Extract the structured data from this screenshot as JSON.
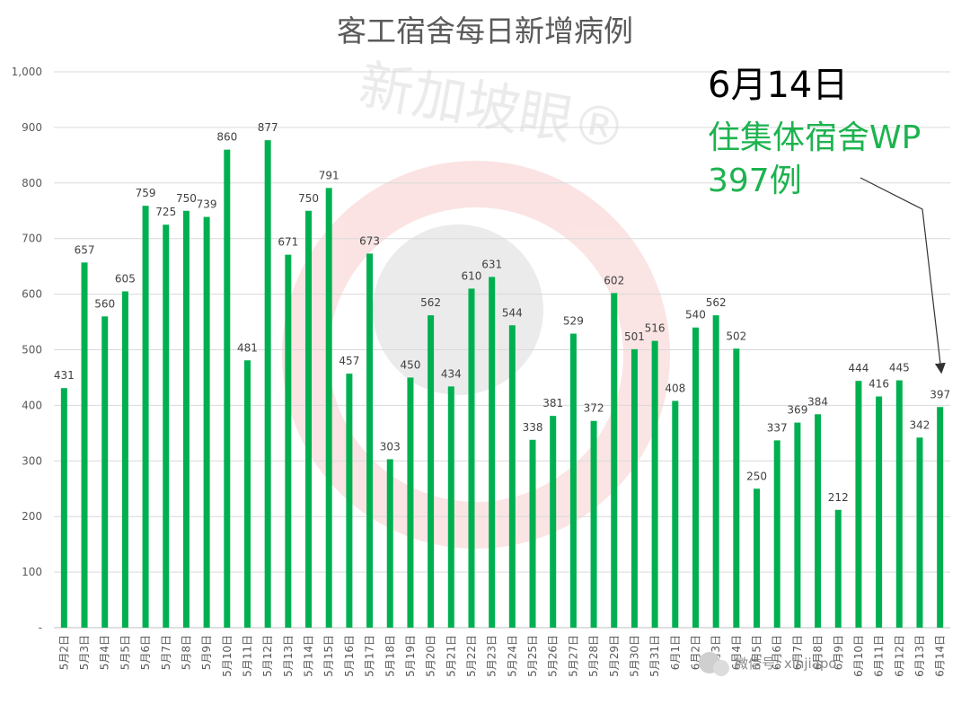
{
  "colors": {
    "bar": "#00b050",
    "annotation_green": "#1db34f",
    "grid": "#d9d9d9"
  },
  "watermark": {
    "brand": "新加坡眼®",
    "wechat": "微信号: xinjiapo"
  },
  "annotation": {
    "date": "6月14日",
    "line1": "住集体宿舍WP",
    "line2": "397例"
  },
  "chart_data": {
    "type": "bar",
    "title": "客工宿舍每日新增病例",
    "xlabel": "",
    "ylabel": "",
    "ylim": [
      0,
      1000
    ],
    "yticks": [
      {
        "value": 0,
        "label": "-"
      },
      {
        "value": 100,
        "label": "100"
      },
      {
        "value": 200,
        "label": "200"
      },
      {
        "value": 300,
        "label": "300"
      },
      {
        "value": 400,
        "label": "400"
      },
      {
        "value": 500,
        "label": "500"
      },
      {
        "value": 600,
        "label": "600"
      },
      {
        "value": 700,
        "label": "700"
      },
      {
        "value": 800,
        "label": "800"
      },
      {
        "value": 900,
        "label": "900"
      },
      {
        "value": 1000,
        "label": "1,000"
      }
    ],
    "grid": true,
    "legend": "none",
    "categories": [
      "5月2日",
      "5月3日",
      "5月4日",
      "5月5日",
      "5月6日",
      "5月7日",
      "5月8日",
      "5月9日",
      "5月10日",
      "5月11日",
      "5月12日",
      "5月13日",
      "5月14日",
      "5月15日",
      "5月16日",
      "5月17日",
      "5月18日",
      "5月19日",
      "5月20日",
      "5月21日",
      "5月22日",
      "5月23日",
      "5月24日",
      "5月25日",
      "5月26日",
      "5月27日",
      "5月28日",
      "5月29日",
      "5月30日",
      "5月31日",
      "6月1日",
      "6月2日",
      "6月3日",
      "6月4日",
      "6月5日",
      "6月6日",
      "6月7日",
      "6月8日",
      "6月9日",
      "6月10日",
      "6月11日",
      "6月12日",
      "6月13日",
      "6月14日"
    ],
    "values": [
      431,
      657,
      560,
      605,
      759,
      725,
      750,
      739,
      860,
      481,
      877,
      671,
      750,
      791,
      457,
      673,
      303,
      450,
      562,
      434,
      610,
      631,
      544,
      338,
      381,
      529,
      372,
      602,
      501,
      516,
      408,
      540,
      562,
      502,
      250,
      337,
      369,
      384,
      212,
      444,
      416,
      445,
      342,
      397
    ]
  }
}
